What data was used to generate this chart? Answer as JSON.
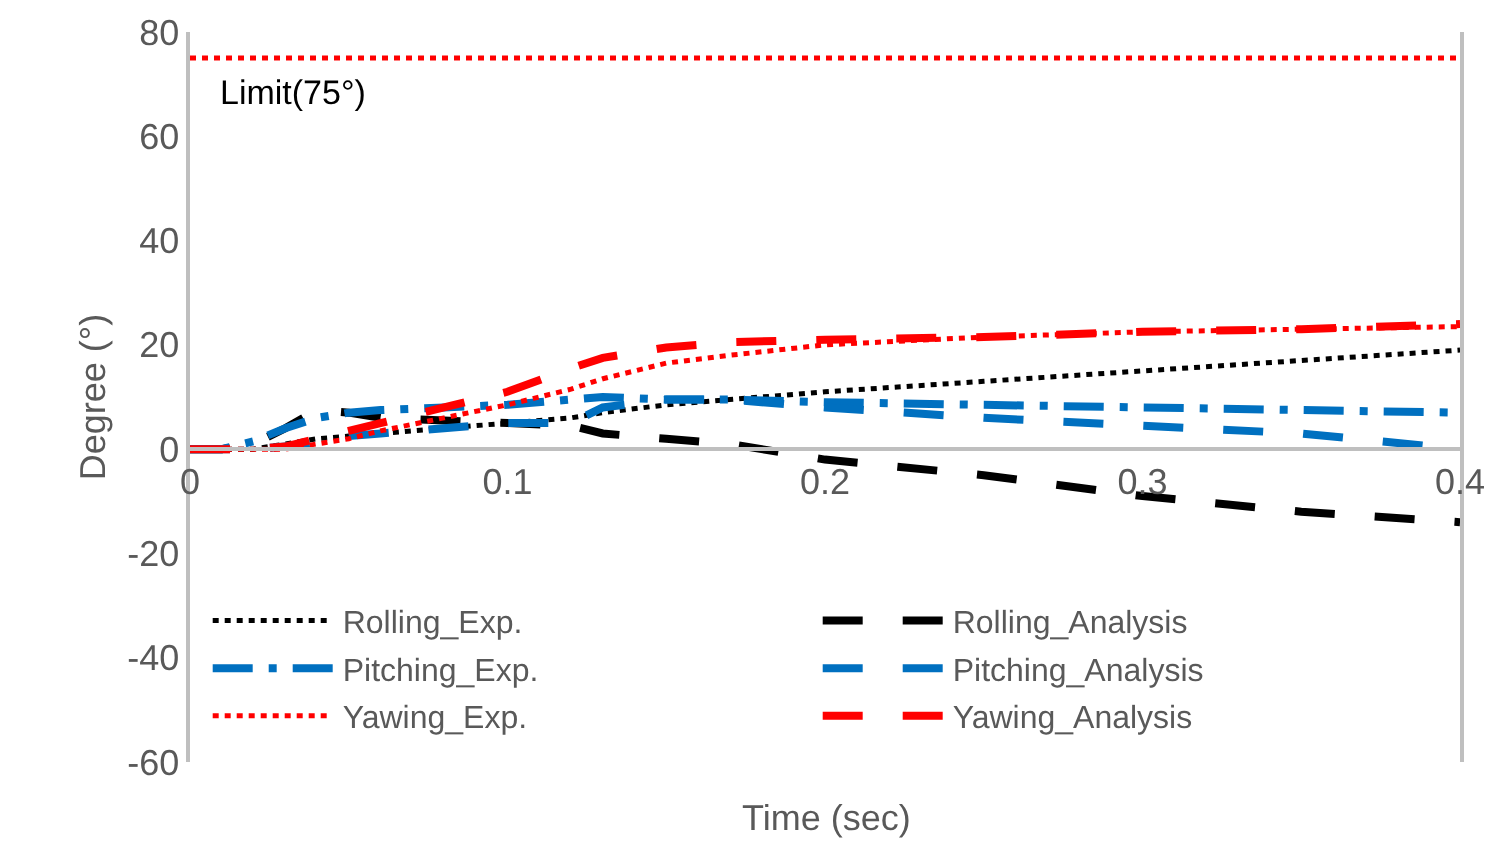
{
  "chart_data": {
    "type": "line",
    "xlabel": "Time (sec)",
    "ylabel": "Degree (°)",
    "xlim": [
      0,
      0.4
    ],
    "xticks": [
      0,
      0.1,
      0.2,
      0.3,
      0.4
    ],
    "ylim": [
      -60,
      80
    ],
    "yticks": [
      -60,
      -40,
      -20,
      0,
      20,
      40,
      60,
      80
    ],
    "grid": false,
    "legend": "bottom left",
    "marker": "none",
    "x": [
      0,
      0.01,
      0.02,
      0.03,
      0.04,
      0.05,
      0.06,
      0.08,
      0.1,
      0.12,
      0.13,
      0.15,
      0.17,
      0.2,
      0.25,
      0.3,
      0.35,
      0.4
    ],
    "series": [
      {
        "name": "Rolling_Exp.",
        "color": "#000000",
        "line_style": "dotted",
        "values": [
          0,
          0,
          0,
          1,
          2,
          2.5,
          3,
          4,
          5,
          6,
          7,
          8.5,
          9.5,
          11,
          13,
          15,
          17,
          19
        ]
      },
      {
        "name": "Rolling_Analysis",
        "color": "#000000",
        "line_style": "dashed",
        "values": [
          0,
          0,
          1,
          4,
          7.5,
          7,
          6,
          5.5,
          5,
          4.5,
          3,
          2,
          1,
          -2,
          -5,
          -9,
          -12,
          -14
        ]
      },
      {
        "name": "Pitching_Exp.",
        "color": "#0070c0",
        "line_style": "dashdot",
        "values": [
          0,
          0,
          1.5,
          4,
          6,
          7,
          7.5,
          8,
          8.5,
          9.5,
          10,
          9.5,
          9.5,
          9,
          8.5,
          8,
          7.5,
          7
        ]
      },
      {
        "name": "Pitching_Analysis",
        "color": "#0070c0",
        "line_style": "dashed",
        "values": [
          0,
          0,
          0,
          0.5,
          1,
          2.5,
          3,
          4,
          5,
          5,
          8,
          9.5,
          9.5,
          8,
          6,
          4.5,
          3,
          0
        ]
      },
      {
        "name": "Yawing_Exp.",
        "color": "#ff0000",
        "line_style": "dotted",
        "values": [
          0,
          0,
          0,
          0,
          1,
          2,
          3.5,
          6,
          8.5,
          11.5,
          13.5,
          16.5,
          18,
          20,
          21.5,
          22.5,
          23,
          23.5
        ]
      },
      {
        "name": "Yawing_Analysis",
        "color": "#ff0000",
        "line_style": "dashed",
        "values": [
          0,
          0,
          0,
          0.5,
          2,
          3.5,
          5,
          8,
          11,
          15.5,
          17.5,
          19.5,
          20.5,
          21,
          21.5,
          22.5,
          23,
          24
        ]
      }
    ],
    "ref_lines": [
      {
        "axis": "y",
        "value": 75,
        "label": "Limit(75°)",
        "color": "#ff0000",
        "line_style": "dotted"
      }
    ]
  }
}
